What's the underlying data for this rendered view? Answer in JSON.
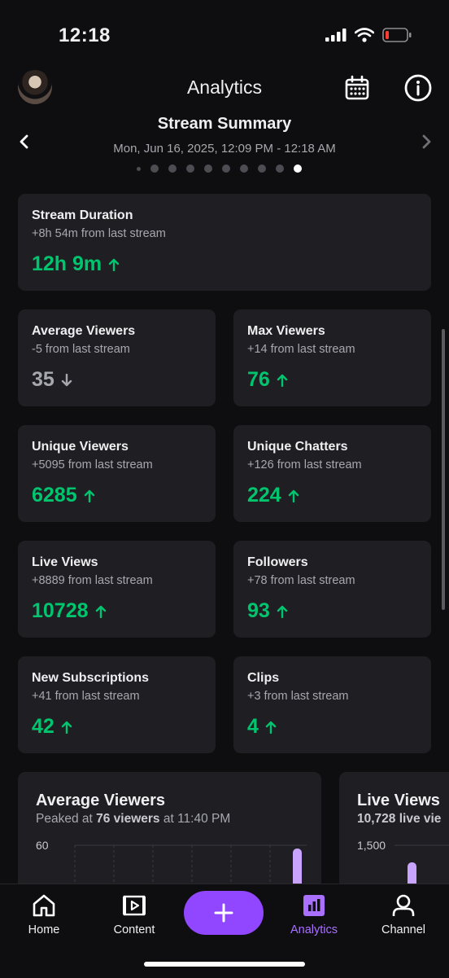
{
  "status_bar": {
    "time": "12:18"
  },
  "header": {
    "title": "Analytics"
  },
  "summary": {
    "title": "Stream Summary",
    "date": "Mon, Jun 16, 2025, 12:09 PM - 12:18 AM",
    "page_count": 10,
    "active_index": 9
  },
  "stats": {
    "duration": {
      "label": "Stream Duration",
      "delta": "+8h 54m from last stream",
      "value": "12h 9m",
      "trend": "up"
    },
    "avg_viewers": {
      "label": "Average Viewers",
      "delta": "-5 from last stream",
      "value": "35",
      "trend": "down"
    },
    "max_viewers": {
      "label": "Max Viewers",
      "delta": "+14 from last stream",
      "value": "76",
      "trend": "up"
    },
    "unique_viewers": {
      "label": "Unique Viewers",
      "delta": "+5095 from last stream",
      "value": "6285",
      "trend": "up"
    },
    "unique_chatters": {
      "label": "Unique Chatters",
      "delta": "+126 from last stream",
      "value": "224",
      "trend": "up"
    },
    "live_views": {
      "label": "Live Views",
      "delta": "+8889 from last stream",
      "value": "10728",
      "trend": "up"
    },
    "followers": {
      "label": "Followers",
      "delta": "+78 from last stream",
      "value": "93",
      "trend": "up"
    },
    "new_subs": {
      "label": "New Subscriptions",
      "delta": "+41 from last stream",
      "value": "42",
      "trend": "up"
    },
    "clips": {
      "label": "Clips",
      "delta": "+3 from last stream",
      "value": "4",
      "trend": "up"
    }
  },
  "charts": {
    "avg_viewers": {
      "title": "Average Viewers",
      "sub_prefix": "Peaked at ",
      "sub_bold": "76 viewers",
      "sub_suffix": " at 11:40 PM",
      "top_tick": "60"
    },
    "live_views": {
      "title": "Live Views",
      "sub_bold": "10,728 live vie",
      "top_tick": "1,500"
    }
  },
  "tabbar": {
    "home": "Home",
    "content": "Content",
    "analytics": "Analytics",
    "channel": "Channel"
  },
  "colors": {
    "accent": "#9147ff",
    "accent_text": "#a970ff",
    "positive": "#00c56f",
    "card_bg": "#1f1f23",
    "bar": "#c8a4ff"
  },
  "icons": {
    "calendar": "calendar-icon",
    "info": "info-icon",
    "home": "home-icon",
    "content": "content-icon",
    "analytics": "analytics-icon",
    "channel": "channel-icon",
    "create": "plus-icon"
  }
}
